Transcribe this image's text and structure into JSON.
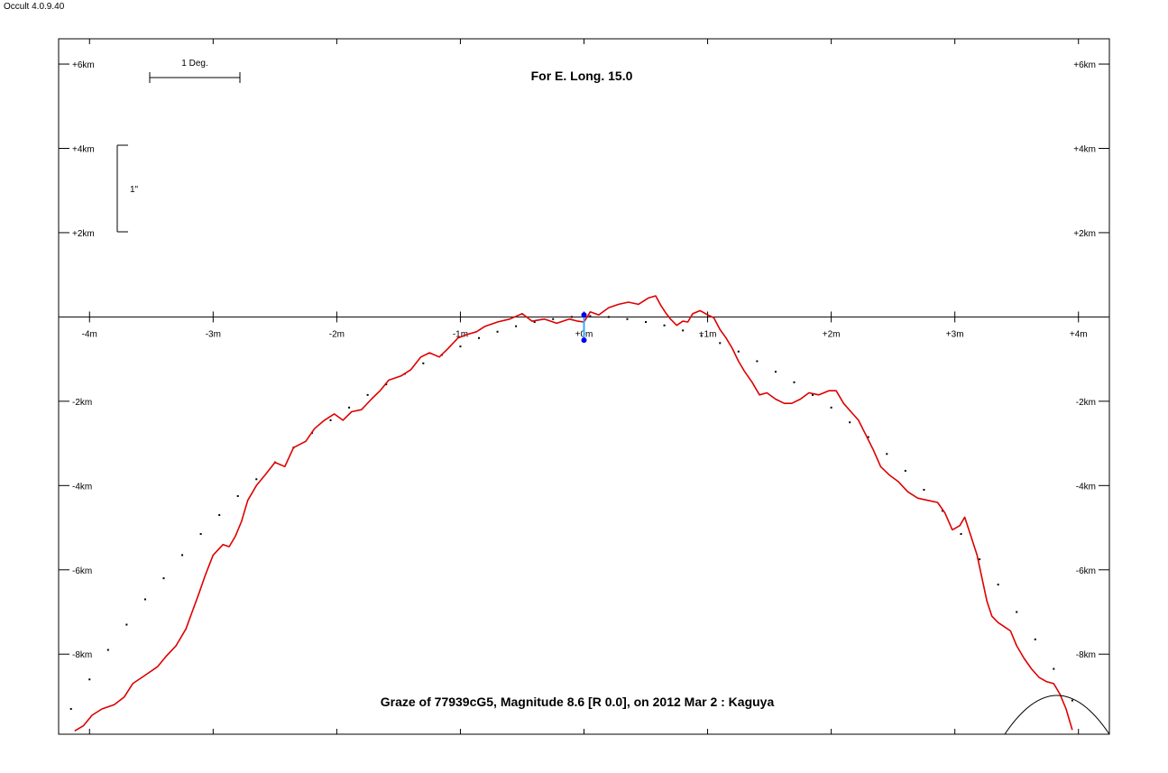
{
  "app": {
    "title": "Occult 4.0.9.40"
  },
  "chart_data": {
    "type": "line",
    "title": "For E. Long. 15.0",
    "footer": "Graze of  77939cG5,  Magnitude 8.6 [R 0.0],  on 2012 Mar  2  :  Kaguya",
    "x_unit": "m",
    "y_unit": "km",
    "xlim": [
      -4.25,
      4.25
    ],
    "ylim": [
      -9.9,
      6.6
    ],
    "x_ticks": [
      {
        "v": -4,
        "label": "-4m"
      },
      {
        "v": -3,
        "label": "-3m"
      },
      {
        "v": -2,
        "label": "-2m"
      },
      {
        "v": -1,
        "label": "-1m"
      },
      {
        "v": 0,
        "label": "+0m"
      },
      {
        "v": 1,
        "label": "+1m"
      },
      {
        "v": 2,
        "label": "+2m"
      },
      {
        "v": 3,
        "label": "+3m"
      },
      {
        "v": 4,
        "label": "+4m"
      }
    ],
    "y_ticks": [
      {
        "v": 6,
        "label": "+6km"
      },
      {
        "v": 4,
        "label": "+4km"
      },
      {
        "v": 2,
        "label": "+2km"
      },
      {
        "v": -2,
        "label": "-2km"
      },
      {
        "v": -4,
        "label": "-4km"
      },
      {
        "v": -6,
        "label": "-6km"
      },
      {
        "v": -8,
        "label": "-8km"
      }
    ],
    "scale_bars": {
      "horizontal_label": "1 Deg.",
      "vertical_label": "1\""
    },
    "series": [
      {
        "role": "lunar limb profile",
        "color": "#dd0000",
        "points": [
          [
            -4.12,
            -9.82
          ],
          [
            -4.05,
            -9.7
          ],
          [
            -3.98,
            -9.45
          ],
          [
            -3.9,
            -9.3
          ],
          [
            -3.8,
            -9.2
          ],
          [
            -3.72,
            -9.02
          ],
          [
            -3.65,
            -8.7
          ],
          [
            -3.55,
            -8.5
          ],
          [
            -3.45,
            -8.3
          ],
          [
            -3.38,
            -8.05
          ],
          [
            -3.3,
            -7.8
          ],
          [
            -3.22,
            -7.4
          ],
          [
            -3.17,
            -7.0
          ],
          [
            -3.12,
            -6.6
          ],
          [
            -3.06,
            -6.1
          ],
          [
            -3.0,
            -5.65
          ],
          [
            -2.92,
            -5.4
          ],
          [
            -2.87,
            -5.45
          ],
          [
            -2.82,
            -5.2
          ],
          [
            -2.77,
            -4.85
          ],
          [
            -2.72,
            -4.35
          ],
          [
            -2.65,
            -4.0
          ],
          [
            -2.58,
            -3.75
          ],
          [
            -2.5,
            -3.45
          ],
          [
            -2.42,
            -3.55
          ],
          [
            -2.35,
            -3.1
          ],
          [
            -2.25,
            -2.95
          ],
          [
            -2.18,
            -2.65
          ],
          [
            -2.1,
            -2.45
          ],
          [
            -2.02,
            -2.3
          ],
          [
            -1.95,
            -2.45
          ],
          [
            -1.88,
            -2.25
          ],
          [
            -1.8,
            -2.2
          ],
          [
            -1.72,
            -1.95
          ],
          [
            -1.65,
            -1.75
          ],
          [
            -1.58,
            -1.5
          ],
          [
            -1.48,
            -1.4
          ],
          [
            -1.4,
            -1.25
          ],
          [
            -1.32,
            -0.95
          ],
          [
            -1.25,
            -0.85
          ],
          [
            -1.17,
            -0.95
          ],
          [
            -1.1,
            -0.75
          ],
          [
            -1.02,
            -0.5
          ],
          [
            -0.95,
            -0.42
          ],
          [
            -0.87,
            -0.35
          ],
          [
            -0.8,
            -0.22
          ],
          [
            -0.7,
            -0.12
          ],
          [
            -0.6,
            -0.05
          ],
          [
            -0.5,
            0.08
          ],
          [
            -0.42,
            -0.1
          ],
          [
            -0.32,
            -0.05
          ],
          [
            -0.22,
            -0.15
          ],
          [
            -0.12,
            -0.05
          ],
          [
            -0.05,
            -0.1
          ],
          [
            0.0,
            -0.12
          ],
          [
            0.05,
            0.12
          ],
          [
            0.12,
            0.05
          ],
          [
            0.2,
            0.22
          ],
          [
            0.28,
            0.3
          ],
          [
            0.36,
            0.35
          ],
          [
            0.44,
            0.3
          ],
          [
            0.52,
            0.45
          ],
          [
            0.58,
            0.5
          ],
          [
            0.62,
            0.28
          ],
          [
            0.66,
            0.1
          ],
          [
            0.7,
            -0.05
          ],
          [
            0.75,
            -0.2
          ],
          [
            0.8,
            -0.1
          ],
          [
            0.84,
            -0.12
          ],
          [
            0.88,
            0.08
          ],
          [
            0.94,
            0.15
          ],
          [
            1.0,
            0.05
          ],
          [
            1.05,
            -0.02
          ],
          [
            1.1,
            -0.3
          ],
          [
            1.15,
            -0.5
          ],
          [
            1.2,
            -0.75
          ],
          [
            1.25,
            -1.05
          ],
          [
            1.3,
            -1.3
          ],
          [
            1.36,
            -1.55
          ],
          [
            1.42,
            -1.85
          ],
          [
            1.48,
            -1.8
          ],
          [
            1.55,
            -1.95
          ],
          [
            1.62,
            -2.05
          ],
          [
            1.68,
            -2.05
          ],
          [
            1.75,
            -1.95
          ],
          [
            1.82,
            -1.8
          ],
          [
            1.9,
            -1.85
          ],
          [
            1.98,
            -1.75
          ],
          [
            2.04,
            -1.75
          ],
          [
            2.1,
            -2.05
          ],
          [
            2.16,
            -2.25
          ],
          [
            2.22,
            -2.45
          ],
          [
            2.28,
            -2.8
          ],
          [
            2.34,
            -3.15
          ],
          [
            2.4,
            -3.55
          ],
          [
            2.47,
            -3.75
          ],
          [
            2.54,
            -3.9
          ],
          [
            2.62,
            -4.15
          ],
          [
            2.7,
            -4.3
          ],
          [
            2.78,
            -4.35
          ],
          [
            2.86,
            -4.4
          ],
          [
            2.92,
            -4.65
          ],
          [
            2.98,
            -5.05
          ],
          [
            3.04,
            -4.95
          ],
          [
            3.08,
            -4.75
          ],
          [
            3.13,
            -5.2
          ],
          [
            3.18,
            -5.65
          ],
          [
            3.22,
            -6.2
          ],
          [
            3.26,
            -6.75
          ],
          [
            3.3,
            -7.1
          ],
          [
            3.35,
            -7.25
          ],
          [
            3.4,
            -7.35
          ],
          [
            3.45,
            -7.45
          ],
          [
            3.5,
            -7.8
          ],
          [
            3.56,
            -8.1
          ],
          [
            3.62,
            -8.35
          ],
          [
            3.68,
            -8.55
          ],
          [
            3.74,
            -8.65
          ],
          [
            3.8,
            -8.7
          ],
          [
            3.85,
            -8.95
          ],
          [
            3.9,
            -9.3
          ],
          [
            3.95,
            -9.8
          ]
        ]
      },
      {
        "role": "mean limb (dotted)",
        "color": "#000000",
        "points": [
          [
            -4.15,
            -9.3
          ],
          [
            -4.0,
            -8.6
          ],
          [
            -3.85,
            -7.9
          ],
          [
            -3.7,
            -7.3
          ],
          [
            -3.55,
            -6.7
          ],
          [
            -3.4,
            -6.2
          ],
          [
            -3.25,
            -5.65
          ],
          [
            -3.1,
            -5.15
          ],
          [
            -2.95,
            -4.7
          ],
          [
            -2.8,
            -4.25
          ],
          [
            -2.65,
            -3.85
          ],
          [
            -2.5,
            -3.45
          ],
          [
            -2.35,
            -3.1
          ],
          [
            -2.2,
            -2.75
          ],
          [
            -2.05,
            -2.45
          ],
          [
            -1.9,
            -2.15
          ],
          [
            -1.75,
            -1.85
          ],
          [
            -1.6,
            -1.6
          ],
          [
            -1.45,
            -1.35
          ],
          [
            -1.3,
            -1.1
          ],
          [
            -1.15,
            -0.9
          ],
          [
            -1.0,
            -0.7
          ],
          [
            -0.85,
            -0.5
          ],
          [
            -0.7,
            -0.35
          ],
          [
            -0.55,
            -0.22
          ],
          [
            -0.4,
            -0.12
          ],
          [
            -0.25,
            -0.05
          ],
          [
            -0.1,
            0.0
          ],
          [
            0.05,
            0.02
          ],
          [
            0.2,
            0.0
          ],
          [
            0.35,
            -0.05
          ],
          [
            0.5,
            -0.12
          ],
          [
            0.65,
            -0.2
          ],
          [
            0.8,
            -0.32
          ],
          [
            0.95,
            -0.45
          ],
          [
            1.1,
            -0.62
          ],
          [
            1.25,
            -0.82
          ],
          [
            1.4,
            -1.05
          ],
          [
            1.55,
            -1.3
          ],
          [
            1.7,
            -1.55
          ],
          [
            1.85,
            -1.85
          ],
          [
            2.0,
            -2.15
          ],
          [
            2.15,
            -2.5
          ],
          [
            2.3,
            -2.85
          ],
          [
            2.45,
            -3.25
          ],
          [
            2.6,
            -3.65
          ],
          [
            2.75,
            -4.1
          ],
          [
            2.9,
            -4.6
          ],
          [
            3.05,
            -5.15
          ],
          [
            3.2,
            -5.75
          ],
          [
            3.35,
            -6.35
          ],
          [
            3.5,
            -7.0
          ],
          [
            3.65,
            -7.65
          ],
          [
            3.8,
            -8.35
          ],
          [
            3.95,
            -9.1
          ]
        ]
      }
    ],
    "observer_segment": {
      "x": 0.0,
      "y1": 0.05,
      "y2": -0.55,
      "color": "#0000ee"
    }
  }
}
